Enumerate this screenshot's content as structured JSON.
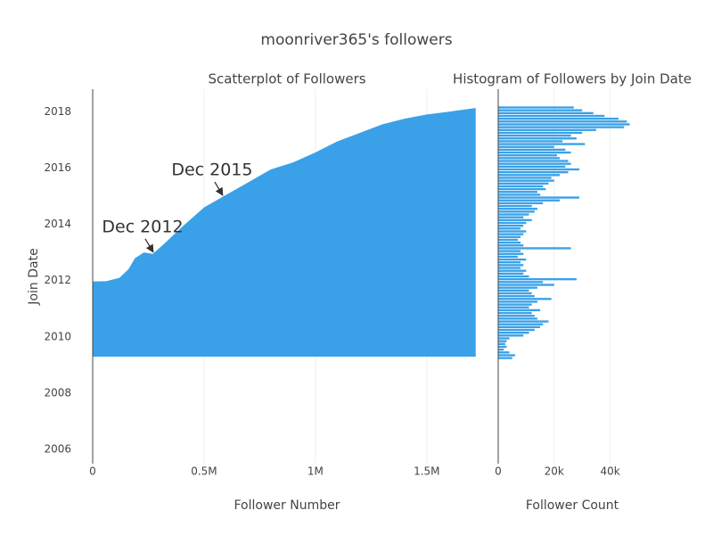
{
  "title": "moonriver365's followers",
  "chart_data": [
    {
      "type": "area",
      "title": "Scatterplot of Followers",
      "x_label": "Follower Number",
      "y_label": "Join Date",
      "color": "#3aa1e8",
      "x": [
        0,
        60000,
        120000,
        160000,
        190000,
        230000,
        270000,
        320000,
        400000,
        500000,
        600000,
        700000,
        800000,
        900000,
        1000000,
        1100000,
        1200000,
        1300000,
        1400000,
        1500000,
        1600000,
        1720000
      ],
      "values": [
        2011.97,
        2011.98,
        2012.1,
        2012.4,
        2012.8,
        2013.0,
        2012.95,
        2013.3,
        2013.9,
        2014.6,
        2015.05,
        2015.5,
        2015.95,
        2016.2,
        2016.55,
        2016.95,
        2017.25,
        2017.55,
        2017.75,
        2017.9,
        2018.0,
        2018.13
      ],
      "base": 2009.3,
      "xlim": [
        0,
        1745000
      ],
      "xticks": [
        0,
        {
          "value": 500000,
          "label": "0.5M"
        },
        {
          "value": 1000000,
          "label": "1M"
        },
        {
          "value": 1500000,
          "label": "1.5M"
        }
      ],
      "ylim": [
        2005.5,
        2018.8
      ],
      "yticks": [
        2006,
        2008,
        2010,
        2012,
        2014,
        2016,
        2018
      ],
      "grid": true,
      "annotations": [
        {
          "text": "Dec 2012",
          "x": 272000,
          "y": 2013.01
        },
        {
          "text": "Dec 2015",
          "x": 584000,
          "y": 2015.03
        }
      ]
    },
    {
      "type": "histogram",
      "orientation": "horizontal",
      "title": "Histogram of Followers by Join Date",
      "x_label": "Follower Count",
      "color": "#3aa1e8",
      "bins": [
        2009.2,
        2009.3,
        2009.4,
        2009.5,
        2009.6,
        2009.7,
        2009.8,
        2009.9,
        2010.0,
        2010.1,
        2010.2,
        2010.3,
        2010.4,
        2010.5,
        2010.6,
        2010.7,
        2010.8,
        2010.9,
        2011.0,
        2011.1,
        2011.2,
        2011.3,
        2011.4,
        2011.5,
        2011.6,
        2011.7,
        2011.8,
        2011.9,
        2012.0,
        2012.1,
        2012.2,
        2012.3,
        2012.4,
        2012.5,
        2012.6,
        2012.7,
        2012.8,
        2012.9,
        2013.0,
        2013.1,
        2013.2,
        2013.3,
        2013.4,
        2013.5,
        2013.6,
        2013.7,
        2013.8,
        2013.9,
        2014.0,
        2014.1,
        2014.2,
        2014.3,
        2014.4,
        2014.5,
        2014.6,
        2014.7,
        2014.8,
        2014.9,
        2015.0,
        2015.1,
        2015.2,
        2015.3,
        2015.4,
        2015.5,
        2015.6,
        2015.7,
        2015.8,
        2015.9,
        2016.0,
        2016.1,
        2016.2,
        2016.3,
        2016.4,
        2016.5,
        2016.6,
        2016.7,
        2016.8,
        2016.9,
        2017.0,
        2017.1,
        2017.2,
        2017.3,
        2017.4,
        2017.5,
        2017.6,
        2017.7,
        2017.8,
        2017.9,
        2018.0,
        2018.1,
        2018.2
      ],
      "values": [
        5000,
        6000,
        4000,
        2000,
        3000,
        2500,
        3000,
        4000,
        9000,
        11000,
        13000,
        15000,
        16000,
        18000,
        14000,
        13000,
        12000,
        15000,
        11000,
        12000,
        14000,
        19000,
        13000,
        12000,
        11000,
        14000,
        20000,
        16000,
        28000,
        11000,
        9000,
        10000,
        8000,
        9000,
        8000,
        10000,
        7000,
        9000,
        8000,
        26000,
        9000,
        8000,
        7000,
        8000,
        9000,
        10000,
        8000,
        9000,
        10000,
        12000,
        9000,
        11000,
        13000,
        14000,
        12000,
        16000,
        22000,
        29000,
        15000,
        14000,
        17000,
        16000,
        18000,
        20000,
        19000,
        22000,
        25000,
        29000,
        24000,
        26000,
        25000,
        22000,
        21000,
        26000,
        24000,
        20000,
        31000,
        23000,
        28000,
        26000,
        30000,
        35000,
        45000,
        47000,
        46000,
        43000,
        38000,
        34000,
        30000,
        27000
      ],
      "xlim": [
        0,
        72000
      ],
      "xticks": [
        0,
        {
          "value": 20000,
          "label": "20k"
        },
        {
          "value": 40000,
          "label": "40k"
        }
      ],
      "grid": true
    }
  ]
}
